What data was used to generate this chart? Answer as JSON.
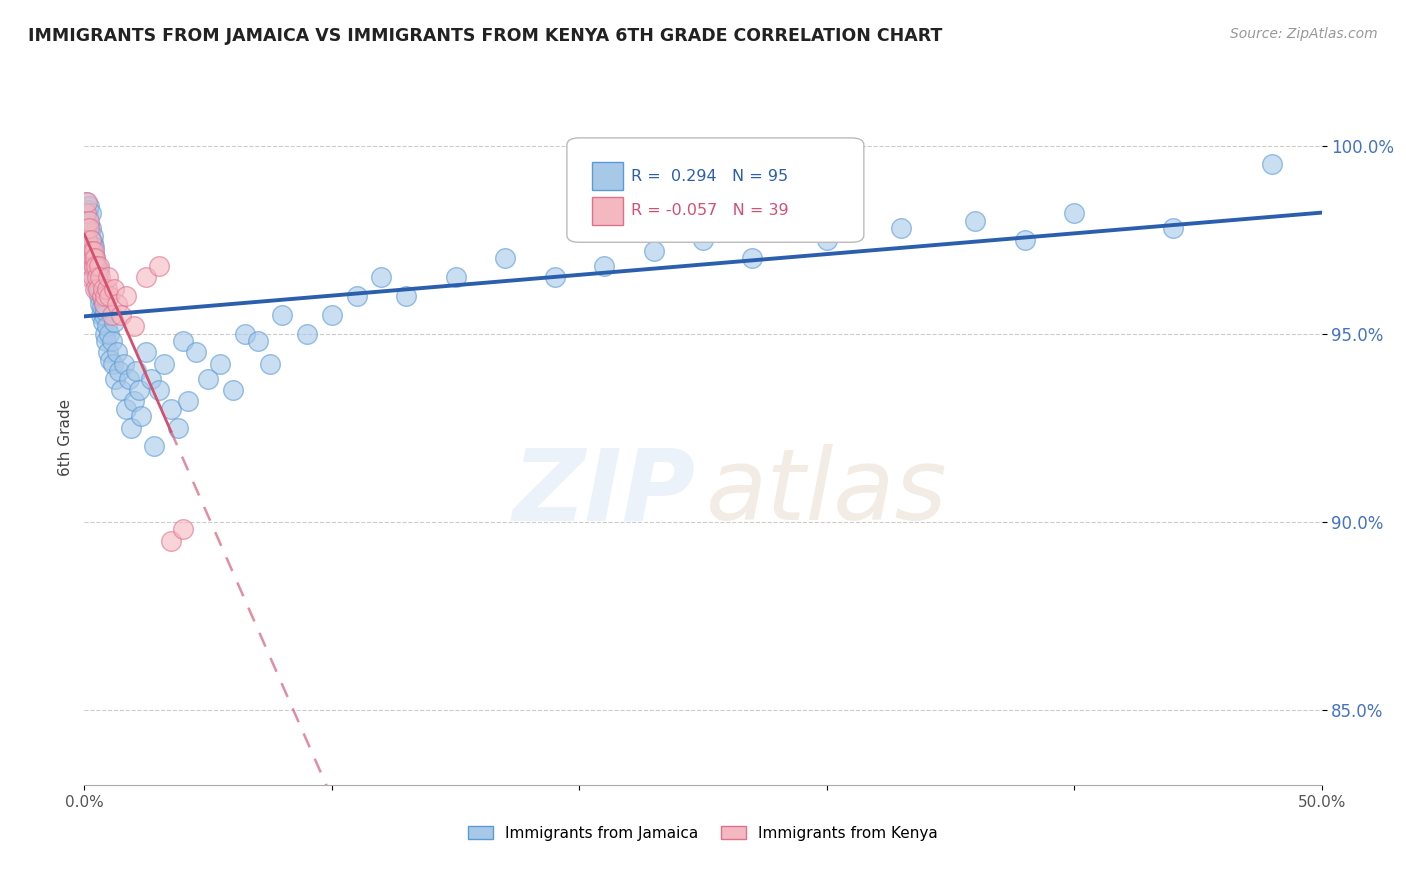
{
  "title": "IMMIGRANTS FROM JAMAICA VS IMMIGRANTS FROM KENYA 6TH GRADE CORRELATION CHART",
  "source": "Source: ZipAtlas.com",
  "ylabel": "6th Grade",
  "xlim": [
    0.0,
    50.0
  ],
  "ylim": [
    83.0,
    101.5
  ],
  "y_ticks": [
    85.0,
    90.0,
    95.0,
    100.0
  ],
  "y_tick_labels": [
    "85.0%",
    "90.0%",
    "95.0%",
    "100.0%"
  ],
  "x_ticks": [
    0,
    10,
    20,
    30,
    40,
    50
  ],
  "x_tick_labels": [
    "0.0%",
    "",
    "",
    "",
    "",
    "50.0%"
  ],
  "jamaica_R": 0.294,
  "jamaica_N": 95,
  "kenya_R": -0.057,
  "kenya_N": 39,
  "jamaica_color": "#a8c8e8",
  "kenya_color": "#f4b8c0",
  "jamaica_edge_color": "#5b9bd5",
  "kenya_edge_color": "#e07090",
  "jamaica_line_color": "#2b5fad",
  "kenya_line_color": "#d45070",
  "background_color": "#ffffff",
  "grid_color": "#cccccc",
  "ytick_color": "#4472c4",
  "jamaica_x": [
    0.05,
    0.08,
    0.1,
    0.12,
    0.14,
    0.15,
    0.16,
    0.18,
    0.2,
    0.22,
    0.24,
    0.25,
    0.27,
    0.28,
    0.3,
    0.32,
    0.33,
    0.35,
    0.37,
    0.38,
    0.4,
    0.42,
    0.45,
    0.48,
    0.5,
    0.52,
    0.55,
    0.58,
    0.6,
    0.63,
    0.65,
    0.68,
    0.7,
    0.72,
    0.75,
    0.78,
    0.8,
    0.82,
    0.85,
    0.88,
    0.9,
    0.95,
    1.0,
    1.05,
    1.1,
    1.15,
    1.2,
    1.25,
    1.3,
    1.4,
    1.5,
    1.6,
    1.7,
    1.8,
    1.9,
    2.0,
    2.1,
    2.2,
    2.3,
    2.5,
    2.7,
    2.8,
    3.0,
    3.2,
    3.5,
    3.8,
    4.0,
    4.2,
    4.5,
    5.0,
    5.5,
    6.0,
    6.5,
    7.0,
    7.5,
    8.0,
    9.0,
    10.0,
    11.0,
    12.0,
    13.0,
    15.0,
    17.0,
    19.0,
    21.0,
    23.0,
    25.0,
    27.0,
    30.0,
    33.0,
    36.0,
    38.0,
    40.0,
    44.0,
    48.0
  ],
  "jamaica_y": [
    98.2,
    98.5,
    98.0,
    97.8,
    98.3,
    97.5,
    98.1,
    97.9,
    98.4,
    97.6,
    97.3,
    98.2,
    97.8,
    97.5,
    97.2,
    97.0,
    97.4,
    97.6,
    97.3,
    96.8,
    97.1,
    96.5,
    97.0,
    96.3,
    96.8,
    96.2,
    96.5,
    96.0,
    96.7,
    95.8,
    96.2,
    95.5,
    96.0,
    95.7,
    95.3,
    95.8,
    95.5,
    95.0,
    95.6,
    94.8,
    95.2,
    94.5,
    95.0,
    94.3,
    94.8,
    94.2,
    95.3,
    93.8,
    94.5,
    94.0,
    93.5,
    94.2,
    93.0,
    93.8,
    92.5,
    93.2,
    94.0,
    93.5,
    92.8,
    94.5,
    93.8,
    92.0,
    93.5,
    94.2,
    93.0,
    92.5,
    94.8,
    93.2,
    94.5,
    93.8,
    94.2,
    93.5,
    95.0,
    94.8,
    94.2,
    95.5,
    95.0,
    95.5,
    96.0,
    96.5,
    96.0,
    96.5,
    97.0,
    96.5,
    96.8,
    97.2,
    97.5,
    97.0,
    97.5,
    97.8,
    98.0,
    97.5,
    98.2,
    97.8,
    99.5
  ],
  "kenya_x": [
    0.05,
    0.08,
    0.1,
    0.12,
    0.15,
    0.18,
    0.2,
    0.22,
    0.25,
    0.28,
    0.3,
    0.33,
    0.35,
    0.38,
    0.4,
    0.42,
    0.45,
    0.48,
    0.5,
    0.55,
    0.6,
    0.65,
    0.7,
    0.75,
    0.8,
    0.85,
    0.9,
    0.95,
    1.0,
    1.1,
    1.2,
    1.3,
    1.5,
    1.7,
    2.0,
    2.5,
    3.0,
    3.5,
    4.0
  ],
  "kenya_y": [
    97.8,
    98.2,
    98.5,
    97.5,
    97.2,
    98.0,
    97.8,
    96.5,
    97.5,
    96.8,
    97.2,
    97.0,
    96.5,
    97.2,
    96.8,
    97.0,
    96.2,
    96.8,
    96.5,
    96.2,
    96.8,
    96.5,
    96.0,
    96.2,
    95.8,
    96.0,
    96.2,
    96.5,
    96.0,
    95.5,
    96.2,
    95.8,
    95.5,
    96.0,
    95.2,
    96.5,
    96.8,
    89.5,
    89.8
  ],
  "kenya_line_solid_end": 3.5,
  "kenya_line_dash_end": 32.0
}
